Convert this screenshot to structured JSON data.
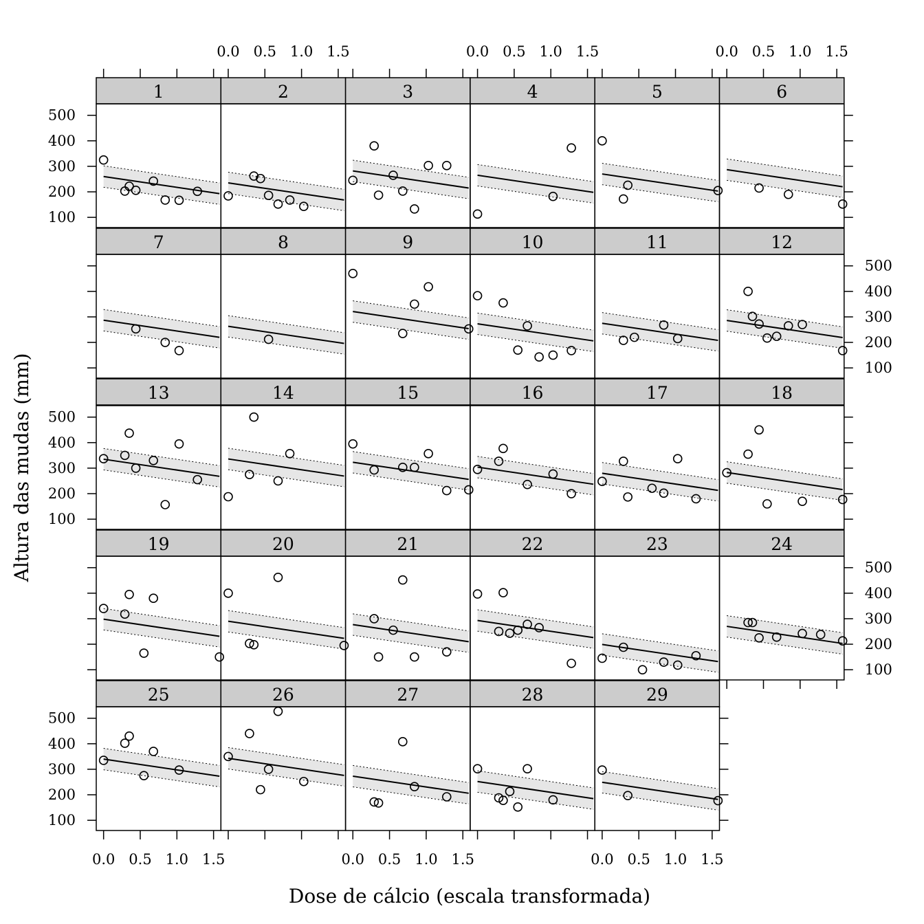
{
  "chart_data": {
    "type": "scatter",
    "xlabel": "Dose de cálcio (escala transformada)",
    "ylabel": "Altura das mudas (mm)",
    "xlim": [
      -0.1,
      1.6
    ],
    "ylim": [
      60,
      545
    ],
    "x_ticks": [
      "0.0",
      "0.5",
      "1.0",
      "1.5"
    ],
    "y_ticks": [
      "100",
      "200",
      "300",
      "400",
      "500"
    ],
    "band": "shaded confidence band with dotted limits around a fitted line",
    "panels": [
      {
        "label": "1",
        "line": [
          260,
          193
        ],
        "points": [
          [
            0,
            325
          ],
          [
            0.29,
            203
          ],
          [
            0.35,
            222
          ],
          [
            0.44,
            206
          ],
          [
            0.68,
            242
          ],
          [
            0.84,
            168
          ],
          [
            1.03,
            167
          ],
          [
            1.28,
            202
          ]
        ]
      },
      {
        "label": "2",
        "line": [
          235,
          168
        ],
        "points": [
          [
            0,
            184
          ],
          [
            0.35,
            262
          ],
          [
            0.44,
            252
          ],
          [
            0.55,
            186
          ],
          [
            0.68,
            152
          ],
          [
            0.84,
            168
          ],
          [
            1.03,
            143
          ]
        ]
      },
      {
        "label": "3",
        "line": [
          282,
          215
        ],
        "points": [
          [
            0,
            245
          ],
          [
            0.29,
            380
          ],
          [
            0.35,
            187
          ],
          [
            0.55,
            265
          ],
          [
            0.68,
            203
          ],
          [
            0.84,
            133
          ],
          [
            1.03,
            303
          ],
          [
            1.28,
            303
          ]
        ]
      },
      {
        "label": "4",
        "line": [
          265,
          198
        ],
        "points": [
          [
            0,
            113
          ],
          [
            1.03,
            182
          ],
          [
            1.28,
            372
          ]
        ]
      },
      {
        "label": "5",
        "line": [
          270,
          203
        ],
        "points": [
          [
            0,
            400
          ],
          [
            0.29,
            172
          ],
          [
            0.35,
            226
          ],
          [
            1.58,
            205
          ]
        ]
      },
      {
        "label": "6",
        "line": [
          287,
          220
        ],
        "points": [
          [
            0.44,
            215
          ],
          [
            0.84,
            190
          ],
          [
            1.58,
            152
          ]
        ]
      },
      {
        "label": "7",
        "line": [
          287,
          220
        ],
        "points": [
          [
            0.44,
            253
          ],
          [
            0.84,
            200
          ],
          [
            1.03,
            168
          ]
        ]
      },
      {
        "label": "8",
        "line": [
          263,
          196
        ],
        "points": [
          [
            0.55,
            212
          ]
        ]
      },
      {
        "label": "9",
        "line": [
          321,
          254
        ],
        "points": [
          [
            0,
            470
          ],
          [
            0.68,
            235
          ],
          [
            0.84,
            350
          ],
          [
            1.03,
            418
          ],
          [
            1.58,
            253
          ]
        ]
      },
      {
        "label": "10",
        "line": [
          273,
          206
        ],
        "points": [
          [
            0,
            383
          ],
          [
            0.35,
            355
          ],
          [
            0.55,
            170
          ],
          [
            0.68,
            265
          ],
          [
            0.84,
            143
          ],
          [
            1.03,
            150
          ],
          [
            1.28,
            168
          ]
        ]
      },
      {
        "label": "11",
        "line": [
          275,
          208
        ],
        "points": [
          [
            0.29,
            208
          ],
          [
            0.44,
            220
          ],
          [
            0.84,
            268
          ],
          [
            1.03,
            215
          ]
        ]
      },
      {
        "label": "12",
        "line": [
          286,
          219
        ],
        "points": [
          [
            0.29,
            400
          ],
          [
            0.35,
            302
          ],
          [
            0.44,
            272
          ],
          [
            0.55,
            217
          ],
          [
            0.68,
            224
          ],
          [
            0.84,
            265
          ],
          [
            1.03,
            270
          ],
          [
            1.58,
            168
          ]
        ]
      },
      {
        "label": "13",
        "line": [
          335,
          268
        ],
        "points": [
          [
            0,
            337
          ],
          [
            0.29,
            350
          ],
          [
            0.35,
            437
          ],
          [
            0.44,
            300
          ],
          [
            0.68,
            330
          ],
          [
            0.84,
            157
          ],
          [
            1.03,
            395
          ],
          [
            1.28,
            255
          ]
        ]
      },
      {
        "label": "14",
        "line": [
          336,
          269
        ],
        "points": [
          [
            0,
            188
          ],
          [
            0.29,
            275
          ],
          [
            0.35,
            500
          ],
          [
            0.68,
            250
          ],
          [
            0.84,
            357
          ]
        ]
      },
      {
        "label": "15",
        "line": [
          323,
          256
        ],
        "points": [
          [
            0,
            395
          ],
          [
            0.29,
            293
          ],
          [
            0.68,
            303
          ],
          [
            0.84,
            303
          ],
          [
            1.03,
            357
          ],
          [
            1.28,
            212
          ],
          [
            1.58,
            215
          ]
        ]
      },
      {
        "label": "16",
        "line": [
          304,
          237
        ],
        "points": [
          [
            0,
            295
          ],
          [
            0.29,
            327
          ],
          [
            0.35,
            377
          ],
          [
            0.68,
            236
          ],
          [
            1.03,
            277
          ],
          [
            1.28,
            200
          ]
        ]
      },
      {
        "label": "17",
        "line": [
          280,
          213
        ],
        "points": [
          [
            0,
            248
          ],
          [
            0.29,
            327
          ],
          [
            0.35,
            187
          ],
          [
            0.68,
            221
          ],
          [
            0.84,
            202
          ],
          [
            1.03,
            337
          ],
          [
            1.28,
            180
          ]
        ]
      },
      {
        "label": "18",
        "line": [
          283,
          216
        ],
        "points": [
          [
            0,
            282
          ],
          [
            0.29,
            355
          ],
          [
            0.44,
            450
          ],
          [
            0.55,
            160
          ],
          [
            1.03,
            170
          ],
          [
            1.58,
            177
          ]
        ]
      },
      {
        "label": "19",
        "line": [
          298,
          231
        ],
        "points": [
          [
            0,
            340
          ],
          [
            0.29,
            318
          ],
          [
            0.35,
            395
          ],
          [
            0.55,
            165
          ],
          [
            0.68,
            380
          ],
          [
            1.58,
            150
          ]
        ]
      },
      {
        "label": "20",
        "line": [
          290,
          223
        ],
        "points": [
          [
            0,
            400
          ],
          [
            0.29,
            203
          ],
          [
            0.35,
            198
          ],
          [
            0.68,
            462
          ],
          [
            1.58,
            195
          ]
        ]
      },
      {
        "label": "21",
        "line": [
          277,
          210
        ],
        "points": [
          [
            0.29,
            300
          ],
          [
            0.35,
            150
          ],
          [
            0.55,
            255
          ],
          [
            0.68,
            452
          ],
          [
            0.84,
            150
          ],
          [
            1.28,
            170
          ]
        ]
      },
      {
        "label": "22",
        "line": [
          293,
          226
        ],
        "points": [
          [
            0,
            397
          ],
          [
            0.29,
            250
          ],
          [
            0.35,
            402
          ],
          [
            0.44,
            243
          ],
          [
            0.55,
            255
          ],
          [
            0.68,
            278
          ],
          [
            0.84,
            265
          ],
          [
            1.28,
            125
          ]
        ]
      },
      {
        "label": "23",
        "line": [
          199,
          132
        ],
        "points": [
          [
            0,
            145
          ],
          [
            0.29,
            188
          ],
          [
            0.55,
            100
          ],
          [
            0.84,
            130
          ],
          [
            1.03,
            118
          ],
          [
            1.28,
            155
          ]
        ]
      },
      {
        "label": "24",
        "line": [
          270,
          203
        ],
        "points": [
          [
            0.29,
            285
          ],
          [
            0.35,
            285
          ],
          [
            0.44,
            225
          ],
          [
            0.68,
            228
          ],
          [
            1.03,
            242
          ],
          [
            1.28,
            238
          ],
          [
            1.58,
            213
          ]
        ]
      },
      {
        "label": "25",
        "line": [
          340,
          273
        ],
        "points": [
          [
            0,
            335
          ],
          [
            0.29,
            402
          ],
          [
            0.35,
            430
          ],
          [
            0.55,
            275
          ],
          [
            0.68,
            370
          ],
          [
            1.03,
            297
          ]
        ]
      },
      {
        "label": "26",
        "line": [
          343,
          276
        ],
        "points": [
          [
            0,
            350
          ],
          [
            0.29,
            440
          ],
          [
            0.44,
            220
          ],
          [
            0.55,
            300
          ],
          [
            0.68,
            527
          ],
          [
            1.03,
            252
          ]
        ]
      },
      {
        "label": "27",
        "line": [
          273,
          206
        ],
        "points": [
          [
            0.29,
            172
          ],
          [
            0.35,
            168
          ],
          [
            0.68,
            408
          ],
          [
            0.84,
            232
          ],
          [
            1.28,
            192
          ]
        ]
      },
      {
        "label": "28",
        "line": [
          252,
          185
        ],
        "points": [
          [
            0,
            302
          ],
          [
            0.29,
            188
          ],
          [
            0.35,
            178
          ],
          [
            0.44,
            213
          ],
          [
            0.55,
            152
          ],
          [
            0.68,
            302
          ],
          [
            1.03,
            180
          ]
        ]
      },
      {
        "label": "29",
        "line": [
          249,
          182
        ],
        "points": [
          [
            0,
            297
          ],
          [
            0.35,
            197
          ],
          [
            1.58,
            177
          ]
        ]
      }
    ],
    "colors": {
      "strip": "#cccccc",
      "band": "#e6e6e6",
      "line": "#000000",
      "points": "#000000"
    }
  }
}
